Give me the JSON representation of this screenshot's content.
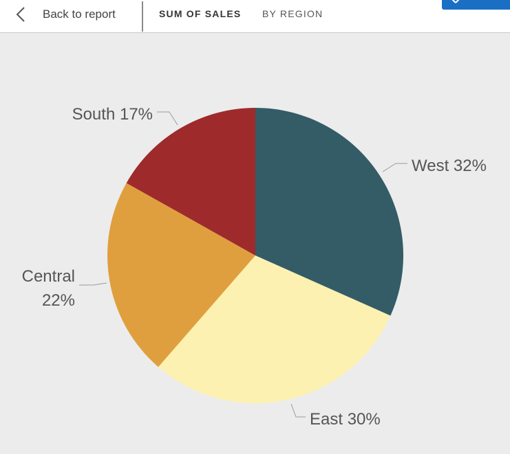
{
  "header": {
    "back_label": "Back to report",
    "title": "SUM OF SALES",
    "subtitle": "BY REGION",
    "close_color": "#1a6fc4"
  },
  "chart_data": {
    "type": "pie",
    "title": "SUM OF SALES BY REGION",
    "categories": [
      "West",
      "East",
      "Central",
      "South"
    ],
    "values": [
      32,
      30,
      22,
      17
    ],
    "unit": "%",
    "start": "12 o'clock",
    "direction": "clockwise",
    "colors": [
      "#335c67",
      "#fdf1b1",
      "#e09f3e",
      "#9e2a2b"
    ],
    "labels": [
      {
        "name": "West",
        "text": "West 32%"
      },
      {
        "name": "East",
        "text": "East 30%"
      },
      {
        "name": "Central",
        "text": "Central",
        "text2": "22%"
      },
      {
        "name": "South",
        "text": "South 17%"
      }
    ]
  }
}
